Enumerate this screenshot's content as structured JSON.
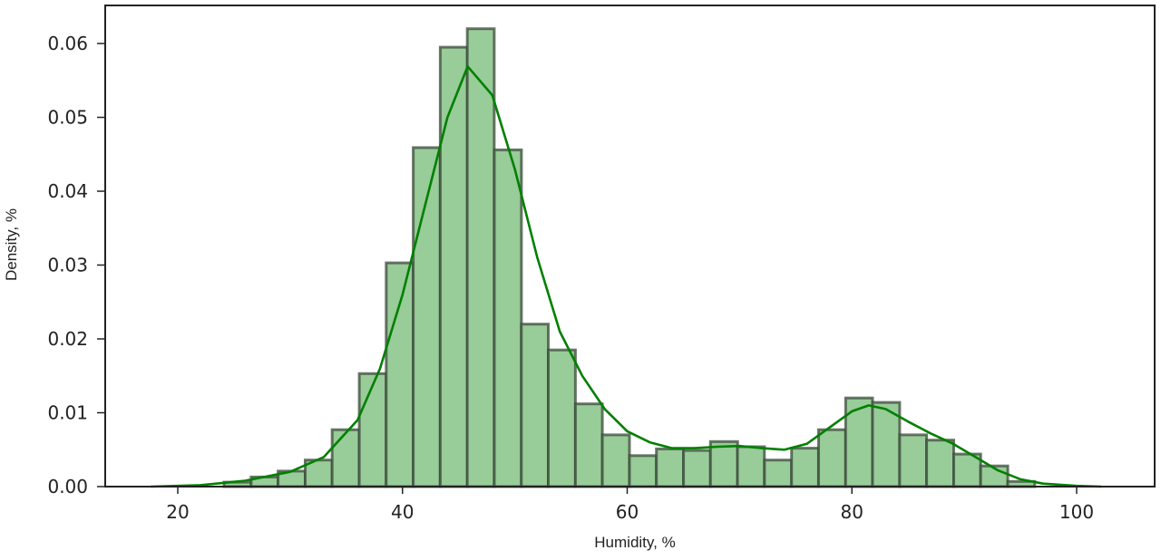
{
  "chart_data": {
    "type": "bar",
    "subtype": "histogram_with_kde",
    "title": "",
    "xlabel": "Humidity, %",
    "ylabel": "Density, %",
    "xlim": [
      13.5,
      106.8
    ],
    "ylim": [
      0.0,
      0.0653
    ],
    "grid": false,
    "legend": null,
    "x_ticks": [
      20,
      40,
      60,
      80,
      100
    ],
    "x_tick_labels": [
      "20",
      "40",
      "60",
      "80",
      "100"
    ],
    "y_ticks": [
      0.0,
      0.01,
      0.02,
      0.03,
      0.04,
      0.05,
      0.06
    ],
    "y_tick_labels": [
      "0.00",
      "0.01",
      "0.02",
      "0.03",
      "0.04",
      "0.05",
      "0.06"
    ],
    "bin_start": 24.12,
    "bin_width": 2.405,
    "bins": [
      {
        "x0": 24.12,
        "x1": 26.53,
        "density": 0.0006
      },
      {
        "x0": 26.53,
        "x1": 28.93,
        "density": 0.0013
      },
      {
        "x0": 28.93,
        "x1": 31.34,
        "density": 0.0021
      },
      {
        "x0": 31.34,
        "x1": 33.74,
        "density": 0.0036
      },
      {
        "x0": 33.74,
        "x1": 36.15,
        "density": 0.0077
      },
      {
        "x0": 36.15,
        "x1": 38.55,
        "density": 0.0153
      },
      {
        "x0": 38.55,
        "x1": 40.96,
        "density": 0.0303
      },
      {
        "x0": 40.96,
        "x1": 43.36,
        "density": 0.0459
      },
      {
        "x0": 43.36,
        "x1": 45.77,
        "density": 0.0595
      },
      {
        "x0": 45.77,
        "x1": 48.17,
        "density": 0.062
      },
      {
        "x0": 48.17,
        "x1": 50.58,
        "density": 0.0456
      },
      {
        "x0": 50.58,
        "x1": 52.98,
        "density": 0.022
      },
      {
        "x0": 52.98,
        "x1": 55.39,
        "density": 0.0185
      },
      {
        "x0": 55.39,
        "x1": 57.79,
        "density": 0.0112
      },
      {
        "x0": 57.79,
        "x1": 60.2,
        "density": 0.007
      },
      {
        "x0": 60.2,
        "x1": 62.6,
        "density": 0.0042
      },
      {
        "x0": 62.6,
        "x1": 65.01,
        "density": 0.0051
      },
      {
        "x0": 65.01,
        "x1": 67.41,
        "density": 0.0049
      },
      {
        "x0": 67.41,
        "x1": 69.82,
        "density": 0.0061
      },
      {
        "x0": 69.82,
        "x1": 72.22,
        "density": 0.0054
      },
      {
        "x0": 72.22,
        "x1": 74.63,
        "density": 0.0036
      },
      {
        "x0": 74.63,
        "x1": 77.03,
        "density": 0.0052
      },
      {
        "x0": 77.03,
        "x1": 79.44,
        "density": 0.0077
      },
      {
        "x0": 79.44,
        "x1": 81.84,
        "density": 0.012
      },
      {
        "x0": 81.84,
        "x1": 84.25,
        "density": 0.0114
      },
      {
        "x0": 84.25,
        "x1": 86.65,
        "density": 0.007
      },
      {
        "x0": 86.65,
        "x1": 89.06,
        "density": 0.0063
      },
      {
        "x0": 89.06,
        "x1": 91.46,
        "density": 0.0044
      },
      {
        "x0": 91.46,
        "x1": 93.87,
        "density": 0.0028
      },
      {
        "x0": 93.87,
        "x1": 96.27,
        "density": 0.0007
      }
    ],
    "kde": {
      "x": [
        17.6,
        22,
        26,
        30,
        33,
        36,
        38,
        40,
        42,
        44,
        45.8,
        48,
        50,
        52,
        54,
        56,
        58,
        60,
        62,
        64,
        66,
        68,
        70,
        72,
        74,
        76,
        78,
        80,
        81.5,
        83,
        85,
        87,
        89,
        91,
        93,
        95,
        97,
        100,
        102.2
      ],
      "y": [
        0.0,
        0.0002,
        0.0008,
        0.002,
        0.004,
        0.009,
        0.016,
        0.026,
        0.038,
        0.05,
        0.0569,
        0.053,
        0.043,
        0.031,
        0.021,
        0.015,
        0.0105,
        0.0075,
        0.006,
        0.0052,
        0.0052,
        0.0054,
        0.0055,
        0.0052,
        0.005,
        0.0058,
        0.008,
        0.0102,
        0.011,
        0.0105,
        0.0088,
        0.0072,
        0.0058,
        0.004,
        0.0022,
        0.001,
        0.0004,
        0.0001,
        0.0
      ]
    },
    "colors": {
      "bar_fill": "#98cc98",
      "bar_edge": "#3b4a3b",
      "kde_line": "#008000",
      "axes": "#222222"
    }
  }
}
